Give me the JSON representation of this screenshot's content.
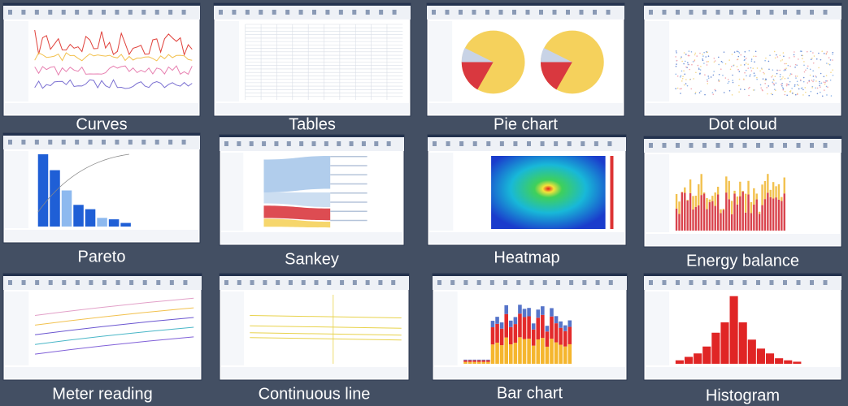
{
  "tiles": [
    {
      "caption": "Curves"
    },
    {
      "caption": "Tables"
    },
    {
      "caption": "Pie chart"
    },
    {
      "caption": "Dot cloud"
    },
    {
      "caption": "Pareto"
    },
    {
      "caption": "Sankey"
    },
    {
      "caption": "Heatmap"
    },
    {
      "caption": "Energy balance"
    },
    {
      "caption": "Meter reading"
    },
    {
      "caption": "Continuous line"
    },
    {
      "caption": "Bar chart"
    },
    {
      "caption": "Histogram"
    }
  ]
}
